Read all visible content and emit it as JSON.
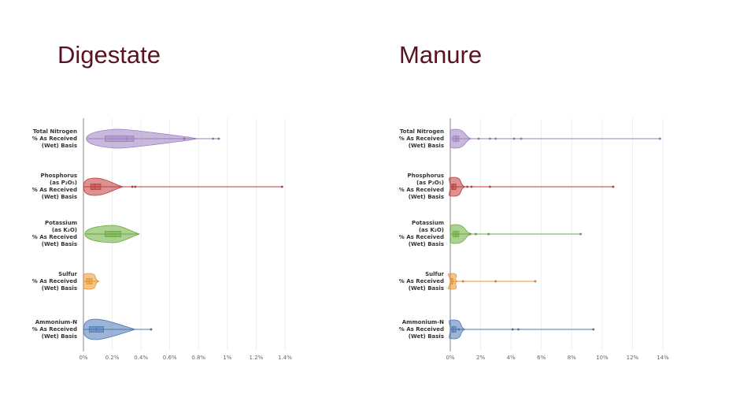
{
  "titles": {
    "left": "Digestate",
    "right": "Manure"
  },
  "categories": [
    "Total Nitrogen\n% As Received\n(Wet) Basis",
    "Phosphorus\n(as P₂O₅)\n% As Received\n(Wet) Basis",
    "Potassium\n(as K₂O)\n% As Received\n(Wet) Basis",
    "Sulfur\n% As Received\n(Wet) Basis",
    "Ammonium-N\n% As Received\n(Wet) Basis"
  ],
  "colors": [
    "#9b7fc0",
    "#c0393b",
    "#6aaa3a",
    "#e8952f",
    "#4a77b4"
  ],
  "chart_data": [
    {
      "type": "violin",
      "title": "Digestate",
      "xlabel": "",
      "ylabel": "",
      "xlim": [
        0,
        1.4
      ],
      "xticks": [
        "0%",
        "0.2%",
        "0.4%",
        "0.6%",
        "0.8%",
        "1%",
        "1.2%",
        "1.4%"
      ],
      "series": [
        {
          "name": "Total Nitrogen",
          "min": 0.02,
          "q1": 0.15,
          "median": 0.3,
          "q3": 0.35,
          "max": 0.95,
          "outliers": [
            0.7,
            0.9,
            0.94
          ]
        },
        {
          "name": "Phosphorus (as P2O5)",
          "min": 0.0,
          "q1": 0.05,
          "median": 0.08,
          "q3": 0.12,
          "max": 1.38,
          "outliers": [
            0.34,
            0.36,
            1.38
          ]
        },
        {
          "name": "Potassium (as K2O)",
          "min": 0.01,
          "q1": 0.15,
          "median": 0.22,
          "q3": 0.26,
          "max": 0.39,
          "outliers": []
        },
        {
          "name": "Sulfur",
          "min": 0.0,
          "q1": 0.02,
          "median": 0.04,
          "q3": 0.06,
          "max": 0.11,
          "outliers": []
        },
        {
          "name": "Ammonium-N",
          "min": 0.0,
          "q1": 0.04,
          "median": 0.09,
          "q3": 0.14,
          "max": 0.47,
          "outliers": [
            0.47
          ]
        }
      ]
    },
    {
      "type": "violin",
      "title": "Manure",
      "xlabel": "",
      "ylabel": "",
      "xlim": [
        0,
        15
      ],
      "xticks": [
        "0%",
        "2%",
        "4%",
        "6%",
        "8%",
        "10%",
        "12%",
        "14%"
      ],
      "series": [
        {
          "name": "Total Nitrogen",
          "min": 0.0,
          "q1": 0.2,
          "median": 0.4,
          "q3": 0.6,
          "max": 14.8,
          "outliers": [
            2.0,
            2.8,
            3.2,
            4.5,
            5.0,
            14.8
          ]
        },
        {
          "name": "Phosphorus (as P2O5)",
          "min": 0.0,
          "q1": 0.1,
          "median": 0.2,
          "q3": 0.4,
          "max": 11.5,
          "outliers": [
            1.2,
            1.5,
            2.8,
            11.5
          ]
        },
        {
          "name": "Potassium (as K2O)",
          "min": 0.0,
          "q1": 0.2,
          "median": 0.4,
          "q3": 0.6,
          "max": 9.2,
          "outliers": [
            1.4,
            1.8,
            2.7,
            9.2
          ]
        },
        {
          "name": "Sulfur",
          "min": 0.0,
          "q1": 0.05,
          "median": 0.1,
          "q3": 0.2,
          "max": 6.0,
          "outliers": [
            0.9,
            3.2,
            6.0
          ]
        },
        {
          "name": "Ammonium-N",
          "min": 0.0,
          "q1": 0.1,
          "median": 0.2,
          "q3": 0.4,
          "max": 10.1,
          "outliers": [
            0.6,
            4.4,
            4.8,
            10.1
          ]
        }
      ]
    }
  ]
}
